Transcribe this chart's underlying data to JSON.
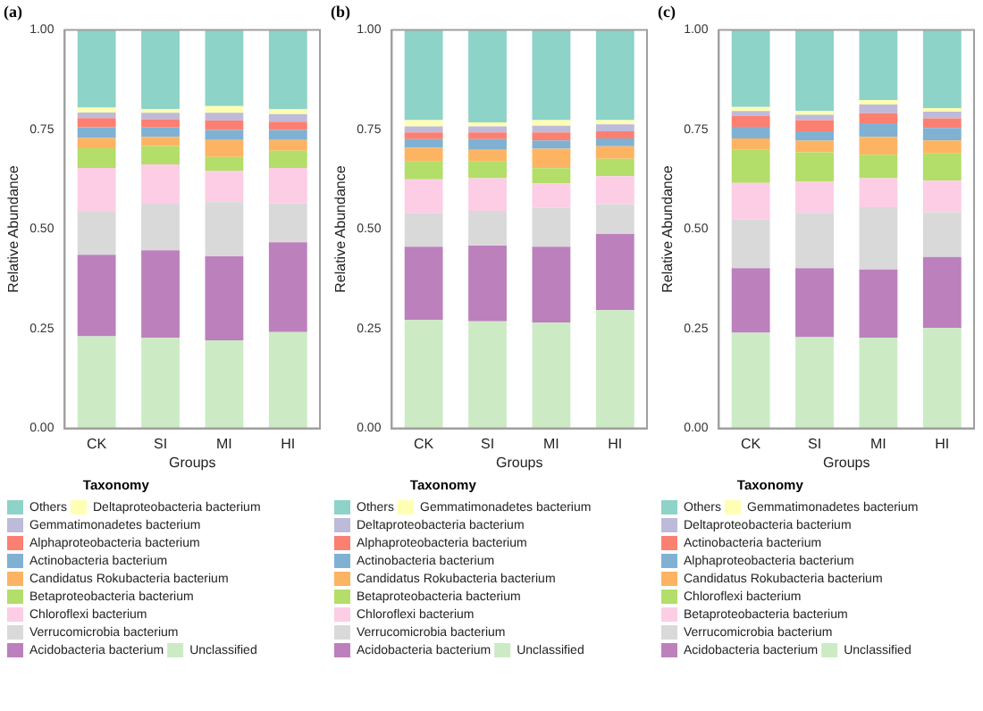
{
  "chart_data": [
    {
      "type": "bar",
      "title": "(a)",
      "xlabel": "Groups",
      "ylabel": "Relative Abundance",
      "legend_title": "Taxonomy",
      "stacked": true,
      "legend": "bottom",
      "grid": false,
      "categories": [
        "CK",
        "SI",
        "MI",
        "HI"
      ],
      "ylim": [
        0,
        1
      ],
      "yticks": [
        {
          "value": 0,
          "label": "0.00"
        },
        {
          "value": 0.25,
          "label": "0.25"
        },
        {
          "value": 0.5,
          "label": "0.50"
        },
        {
          "value": 0.75,
          "label": "0.75"
        },
        {
          "value": 1,
          "label": "1.00"
        }
      ],
      "series": [
        {
          "name": "Unclassified",
          "color": "#ccebc5",
          "values": [
            0.231,
            0.227,
            0.221,
            0.242
          ]
        },
        {
          "name": "Acidobacteria bacterium",
          "color": "#bc80bd",
          "values": [
            0.205,
            0.22,
            0.211,
            0.225
          ]
        },
        {
          "name": "Verrucomicrobia bacterium",
          "color": "#d9d9d9",
          "values": [
            0.108,
            0.117,
            0.136,
            0.098
          ]
        },
        {
          "name": "Chloroflexi bacterium",
          "color": "#fccde5",
          "values": [
            0.11,
            0.099,
            0.078,
            0.089
          ]
        },
        {
          "name": "Betaproteobacteria bacterium",
          "color": "#b3de69",
          "values": [
            0.049,
            0.046,
            0.035,
            0.043
          ]
        },
        {
          "name": "Candidatus Rokubacteria bacterium",
          "color": "#fdb462",
          "values": [
            0.026,
            0.023,
            0.043,
            0.027
          ]
        },
        {
          "name": "Actinobacteria bacterium",
          "color": "#80b1d3",
          "values": [
            0.027,
            0.023,
            0.025,
            0.025
          ]
        },
        {
          "name": "Alphaproteobacteria bacterium",
          "color": "#fb8072",
          "values": [
            0.023,
            0.021,
            0.024,
            0.021
          ]
        },
        {
          "name": "Gemmatimonadetes bacterium",
          "color": "#bebada",
          "values": [
            0.014,
            0.016,
            0.019,
            0.019
          ]
        },
        {
          "name": "Deltaproteobacteria bacterium",
          "color": "#ffffb3",
          "values": [
            0.012,
            0.01,
            0.017,
            0.012
          ]
        },
        {
          "name": "Others",
          "color": "#8dd3c7",
          "values": [
            0.195,
            0.198,
            0.191,
            0.199
          ]
        }
      ]
    },
    {
      "type": "bar",
      "title": "(b)",
      "xlabel": "Groups",
      "ylabel": "Relative Abundance",
      "legend_title": "Taxonomy",
      "stacked": true,
      "legend": "bottom",
      "grid": false,
      "categories": [
        "CK",
        "SI",
        "MI",
        "HI"
      ],
      "ylim": [
        0,
        1
      ],
      "yticks": [
        {
          "value": 0,
          "label": "0.00"
        },
        {
          "value": 0.25,
          "label": "0.25"
        },
        {
          "value": 0.5,
          "label": "0.50"
        },
        {
          "value": 0.75,
          "label": "0.75"
        },
        {
          "value": 1,
          "label": "1.00"
        }
      ],
      "series": [
        {
          "name": "Unclassified",
          "color": "#ccebc5",
          "values": [
            0.272,
            0.269,
            0.266,
            0.297
          ]
        },
        {
          "name": "Acidobacteria bacterium",
          "color": "#bc80bd",
          "values": [
            0.184,
            0.19,
            0.19,
            0.191
          ]
        },
        {
          "name": "Verrucomicrobia bacterium",
          "color": "#d9d9d9",
          "values": [
            0.084,
            0.087,
            0.098,
            0.075
          ]
        },
        {
          "name": "Chloroflexi bacterium",
          "color": "#fccde5",
          "values": [
            0.085,
            0.082,
            0.061,
            0.07
          ]
        },
        {
          "name": "Betaproteobacteria bacterium",
          "color": "#b3de69",
          "values": [
            0.045,
            0.042,
            0.038,
            0.044
          ]
        },
        {
          "name": "Candidatus Rokubacteria bacterium",
          "color": "#fdb462",
          "values": [
            0.035,
            0.029,
            0.049,
            0.031
          ]
        },
        {
          "name": "Actinobacteria bacterium",
          "color": "#80b1d3",
          "values": [
            0.021,
            0.027,
            0.021,
            0.02
          ]
        },
        {
          "name": "Alphaproteobacteria bacterium",
          "color": "#fb8072",
          "values": [
            0.017,
            0.017,
            0.02,
            0.018
          ]
        },
        {
          "name": "Deltaproteobacteria bacterium",
          "color": "#bebada",
          "values": [
            0.015,
            0.015,
            0.017,
            0.017
          ]
        },
        {
          "name": "Gemmatimonadetes bacterium",
          "color": "#ffffb3",
          "values": [
            0.016,
            0.01,
            0.014,
            0.011
          ]
        },
        {
          "name": "Others",
          "color": "#8dd3c7",
          "values": [
            0.226,
            0.232,
            0.226,
            0.226
          ]
        }
      ]
    },
    {
      "type": "bar",
      "title": "(c)",
      "xlabel": "Groups",
      "ylabel": "Relative Abundance",
      "legend_title": "Taxonomy",
      "stacked": true,
      "legend": "bottom",
      "grid": false,
      "categories": [
        "CK",
        "SI",
        "MI",
        "HI"
      ],
      "ylim": [
        0,
        1
      ],
      "yticks": [
        {
          "value": 0,
          "label": "0.00"
        },
        {
          "value": 0.25,
          "label": "0.25"
        },
        {
          "value": 0.5,
          "label": "0.50"
        },
        {
          "value": 0.75,
          "label": "0.75"
        },
        {
          "value": 1,
          "label": "1.00"
        }
      ],
      "series": [
        {
          "name": "Unclassified",
          "color": "#ccebc5",
          "values": [
            0.24,
            0.229,
            0.228,
            0.252
          ]
        },
        {
          "name": "Acidobacteria bacterium",
          "color": "#bc80bd",
          "values": [
            0.162,
            0.173,
            0.171,
            0.178
          ]
        },
        {
          "name": "Verrucomicrobia bacterium",
          "color": "#d9d9d9",
          "values": [
            0.123,
            0.139,
            0.156,
            0.113
          ]
        },
        {
          "name": "Betaproteobacteria bacterium",
          "color": "#fccde5",
          "values": [
            0.091,
            0.078,
            0.073,
            0.079
          ]
        },
        {
          "name": "Chloroflexi bacterium",
          "color": "#b3de69",
          "values": [
            0.083,
            0.074,
            0.059,
            0.068
          ]
        },
        {
          "name": "Candidatus Rokubacteria bacterium",
          "color": "#fdb462",
          "values": [
            0.029,
            0.029,
            0.045,
            0.033
          ]
        },
        {
          "name": "Alphaproteobacteria bacterium",
          "color": "#80b1d3",
          "values": [
            0.029,
            0.024,
            0.034,
            0.031
          ]
        },
        {
          "name": "Actinobacteria bacterium",
          "color": "#fb8072",
          "values": [
            0.028,
            0.028,
            0.025,
            0.024
          ]
        },
        {
          "name": "Deltaproteobacteria bacterium",
          "color": "#bebada",
          "values": [
            0.012,
            0.013,
            0.022,
            0.017
          ]
        },
        {
          "name": "Gemmatimonadetes bacterium",
          "color": "#ffffb3",
          "values": [
            0.01,
            0.01,
            0.011,
            0.009
          ]
        },
        {
          "name": "Others",
          "color": "#8dd3c7",
          "values": [
            0.193,
            0.203,
            0.176,
            0.196
          ]
        }
      ]
    }
  ]
}
